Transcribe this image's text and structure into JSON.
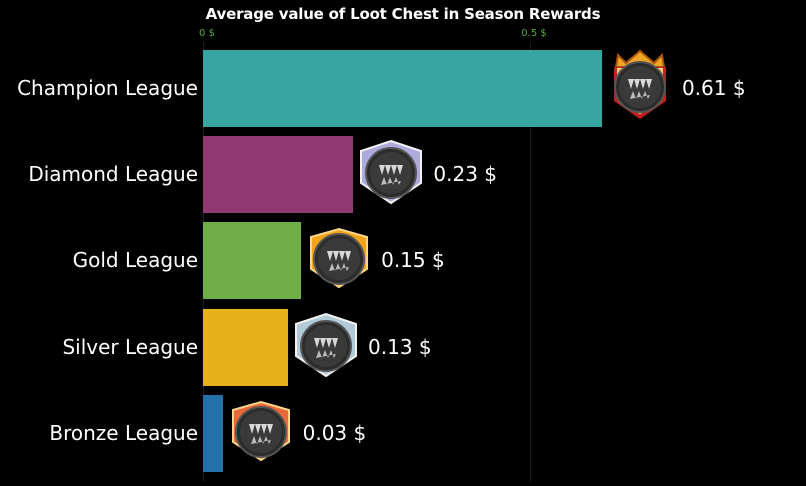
{
  "chart_data": {
    "type": "bar",
    "orientation": "horizontal",
    "title": "Average value of Loot Chest in Season Rewards",
    "xlabel": "",
    "ylabel": "",
    "xlim": [
      0,
      0.62
    ],
    "grid": false,
    "x_ticks": [
      {
        "value": 0,
        "label": "0 $"
      },
      {
        "value": 0.5,
        "label": "0.5 $"
      }
    ],
    "categories": [
      "Champion League",
      "Diamond League",
      "Gold League",
      "Silver League",
      "Bronze League"
    ],
    "values": [
      0.61,
      0.23,
      0.15,
      0.13,
      0.03
    ],
    "value_labels": [
      "0.61 $",
      "0.23 $",
      "0.15 $",
      "0.13 $",
      "0.03 $"
    ],
    "bar_colors": [
      "#37a6a2",
      "#913a72",
      "#6fae47",
      "#e8b01a",
      "#2470a8"
    ],
    "badge_icons": [
      "champion-badge-icon",
      "diamond-badge-icon",
      "gold-badge-icon",
      "silver-badge-icon",
      "bronze-badge-icon"
    ],
    "badge_colors": [
      "#e89a20",
      "#b8b4e8",
      "#f2a41a",
      "#bcd4e4",
      "#e86a3a"
    ]
  }
}
